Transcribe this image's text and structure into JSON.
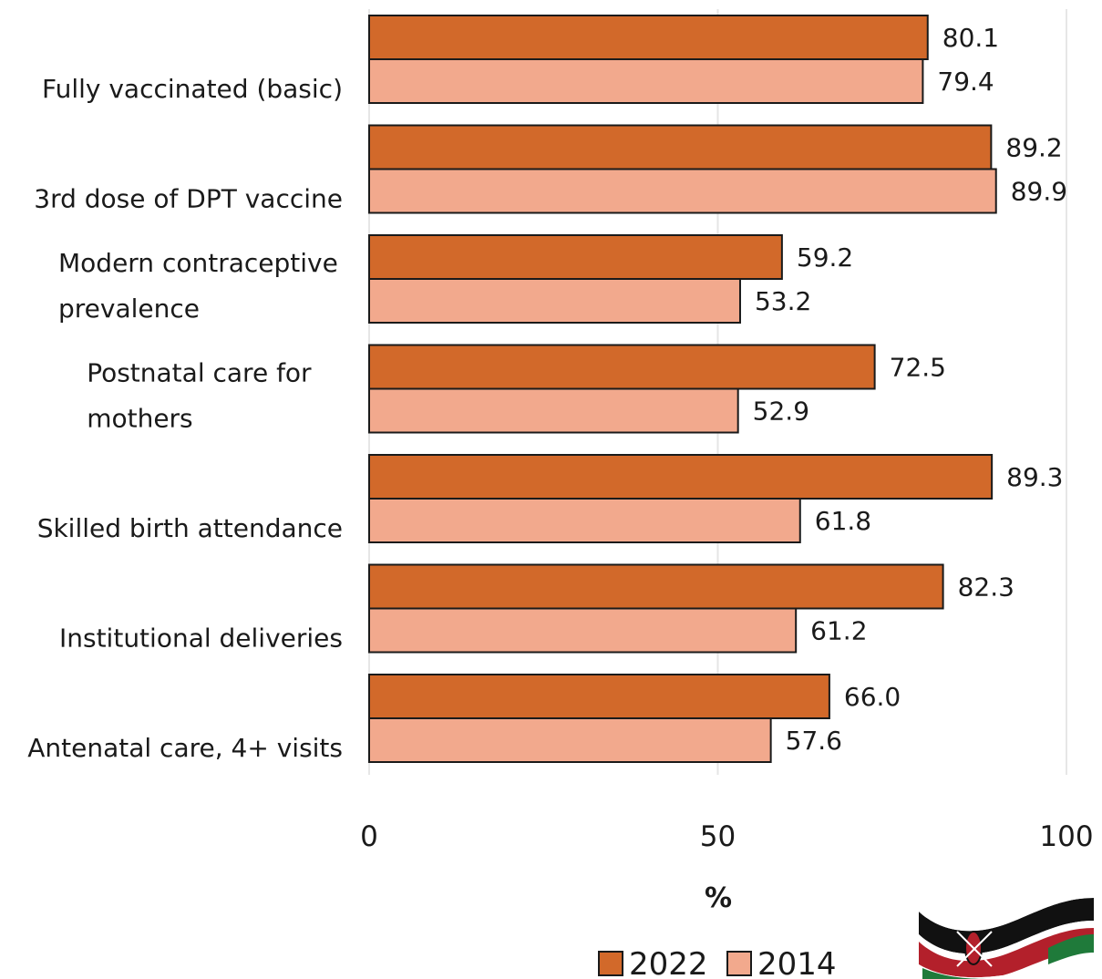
{
  "chart_data": {
    "type": "bar",
    "orientation": "horizontal",
    "categories": [
      [
        "Fully vaccinated (basic)"
      ],
      [
        "3rd dose of DPT vaccine"
      ],
      [
        "Modern contraceptive",
        "prevalence"
      ],
      [
        "Postnatal care for",
        "mothers"
      ],
      [
        "Skilled birth attendance"
      ],
      [
        "Institutional deliveries"
      ],
      [
        "Antenatal care, 4+ visits"
      ]
    ],
    "series": [
      {
        "name": "2022",
        "color": "#d2692a",
        "values": [
          80.1,
          89.2,
          59.2,
          72.5,
          89.3,
          82.3,
          66.0
        ],
        "labels": [
          "80.1",
          "89.2",
          "59.2",
          "72.5",
          "89.3",
          "82.3",
          "66.0"
        ]
      },
      {
        "name": "2014",
        "color": "#f2a98d",
        "values": [
          79.4,
          89.9,
          53.2,
          52.9,
          61.8,
          61.2,
          57.6
        ],
        "labels": [
          "79.4",
          "89.9",
          "53.2",
          "52.9",
          "61.8",
          "61.2",
          "57.6"
        ]
      }
    ],
    "xlabel": "%",
    "xlim": [
      0,
      100
    ],
    "xticks": [
      0,
      50,
      100
    ],
    "xtick_labels": [
      "0",
      "50",
      "100"
    ],
    "grid": true,
    "legend_position": "bottom"
  },
  "decoration": {
    "flag_icon": "kenya-flag-ribbon-icon"
  }
}
